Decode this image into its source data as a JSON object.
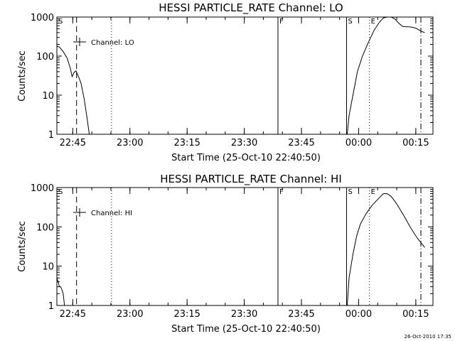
{
  "timestamp": "26-Oct-2010 17:35",
  "chart_data": [
    {
      "type": "line",
      "title": "HESSI PARTICLE_RATE Channel: LO",
      "xlabel": "Start Time (25-Oct-10 22:40:50)",
      "ylabel": "Counts/sec",
      "yscale": "log",
      "ylim": [
        1,
        1000
      ],
      "xlim": [
        "22:40:50",
        "00:19:30"
      ],
      "yticks": [
        "1",
        "10",
        "100",
        "1000"
      ],
      "xticks": [
        "22:45",
        "23:00",
        "23:15",
        "23:30",
        "23:45",
        "00:00",
        "00:15"
      ],
      "legend": "Channel: LO",
      "markers": [
        {
          "label": "S",
          "time": "22:40:50",
          "style": "solid"
        },
        {
          "label": "",
          "time": "22:46:00",
          "style": "dashed"
        },
        {
          "label": "",
          "time": "22:55:10",
          "style": "dotted"
        },
        {
          "label": "F",
          "time": "23:38:50",
          "style": "solid"
        },
        {
          "label": "S",
          "time": "23:56:50",
          "style": "solid"
        },
        {
          "label": "E",
          "time": "00:02:50",
          "style": "dotted"
        },
        {
          "label": "",
          "time": "00:16:20",
          "style": "dashdot"
        }
      ],
      "series": [
        {
          "segments": [
            {
              "x": [
                "22:40:50",
                "22:41:30",
                "22:42:30",
                "22:43:30",
                "22:44:20",
                "22:44:50",
                "22:45:20",
                "22:45:50",
                "22:46:30",
                "22:47:10",
                "22:48:00",
                "22:48:40",
                "22:49:20"
              ],
              "y": [
                180,
                170,
                130,
                90,
                50,
                30,
                38,
                42,
                30,
                20,
                8,
                3,
                1
              ]
            },
            {
              "x": [
                "23:57:00",
                "23:57:30",
                "23:58:30",
                "23:59:40",
                "00:01:00",
                "00:02:30",
                "00:04:00",
                "00:05:30",
                "00:06:30",
                "00:07:30",
                "00:08:30",
                "00:09:30",
                "00:10:30",
                "00:11:30",
                "00:12:30",
                "00:13:30",
                "00:15:00",
                "00:16:30",
                "00:17:20"
              ],
              "y": [
                1,
                3,
                10,
                40,
                100,
                220,
                450,
                750,
                950,
                1000,
                1000,
                900,
                700,
                580,
                560,
                560,
                520,
                430,
                400
              ]
            }
          ]
        }
      ]
    },
    {
      "type": "line",
      "title": "HESSI PARTICLE_RATE Channel: HI",
      "xlabel": "Start Time (25-Oct-10 22:40:50)",
      "ylabel": "Counts/sec",
      "yscale": "log",
      "ylim": [
        1,
        1000
      ],
      "xlim": [
        "22:40:50",
        "00:19:30"
      ],
      "yticks": [
        "1",
        "10",
        "100",
        "1000"
      ],
      "xticks": [
        "22:45",
        "23:00",
        "23:15",
        "23:30",
        "23:45",
        "00:00",
        "00:15"
      ],
      "legend": "Channel: HI",
      "markers": [
        {
          "label": "S",
          "time": "22:40:50",
          "style": "solid"
        },
        {
          "label": "",
          "time": "22:46:00",
          "style": "dashed"
        },
        {
          "label": "",
          "time": "22:55:10",
          "style": "dotted"
        },
        {
          "label": "F",
          "time": "23:38:50",
          "style": "solid"
        },
        {
          "label": "S",
          "time": "23:56:50",
          "style": "solid"
        },
        {
          "label": "E",
          "time": "00:02:50",
          "style": "dotted"
        },
        {
          "label": "",
          "time": "00:16:20",
          "style": "dashdot"
        }
      ],
      "series": [
        {
          "segments": [
            {
              "x": [
                "22:40:50",
                "22:41:10",
                "22:41:30",
                "22:41:50",
                "22:42:10",
                "22:42:30",
                "22:42:50"
              ],
              "y": [
                5,
                4,
                3,
                3,
                2.5,
                2,
                1
              ]
            },
            {
              "x": [
                "23:57:00",
                "23:57:30",
                "23:58:30",
                "23:59:30",
                "00:00:30",
                "00:02:00",
                "00:03:30",
                "00:05:00",
                "00:06:30",
                "00:07:30",
                "00:08:30",
                "00:09:30",
                "00:10:30",
                "00:11:30",
                "00:12:30",
                "00:13:30",
                "00:14:30",
                "00:15:30",
                "00:16:30",
                "00:17:20"
              ],
              "y": [
                1,
                5,
                20,
                60,
                120,
                220,
                350,
                500,
                700,
                700,
                600,
                450,
                320,
                220,
                150,
                100,
                70,
                50,
                38,
                30
              ]
            }
          ]
        }
      ]
    }
  ]
}
